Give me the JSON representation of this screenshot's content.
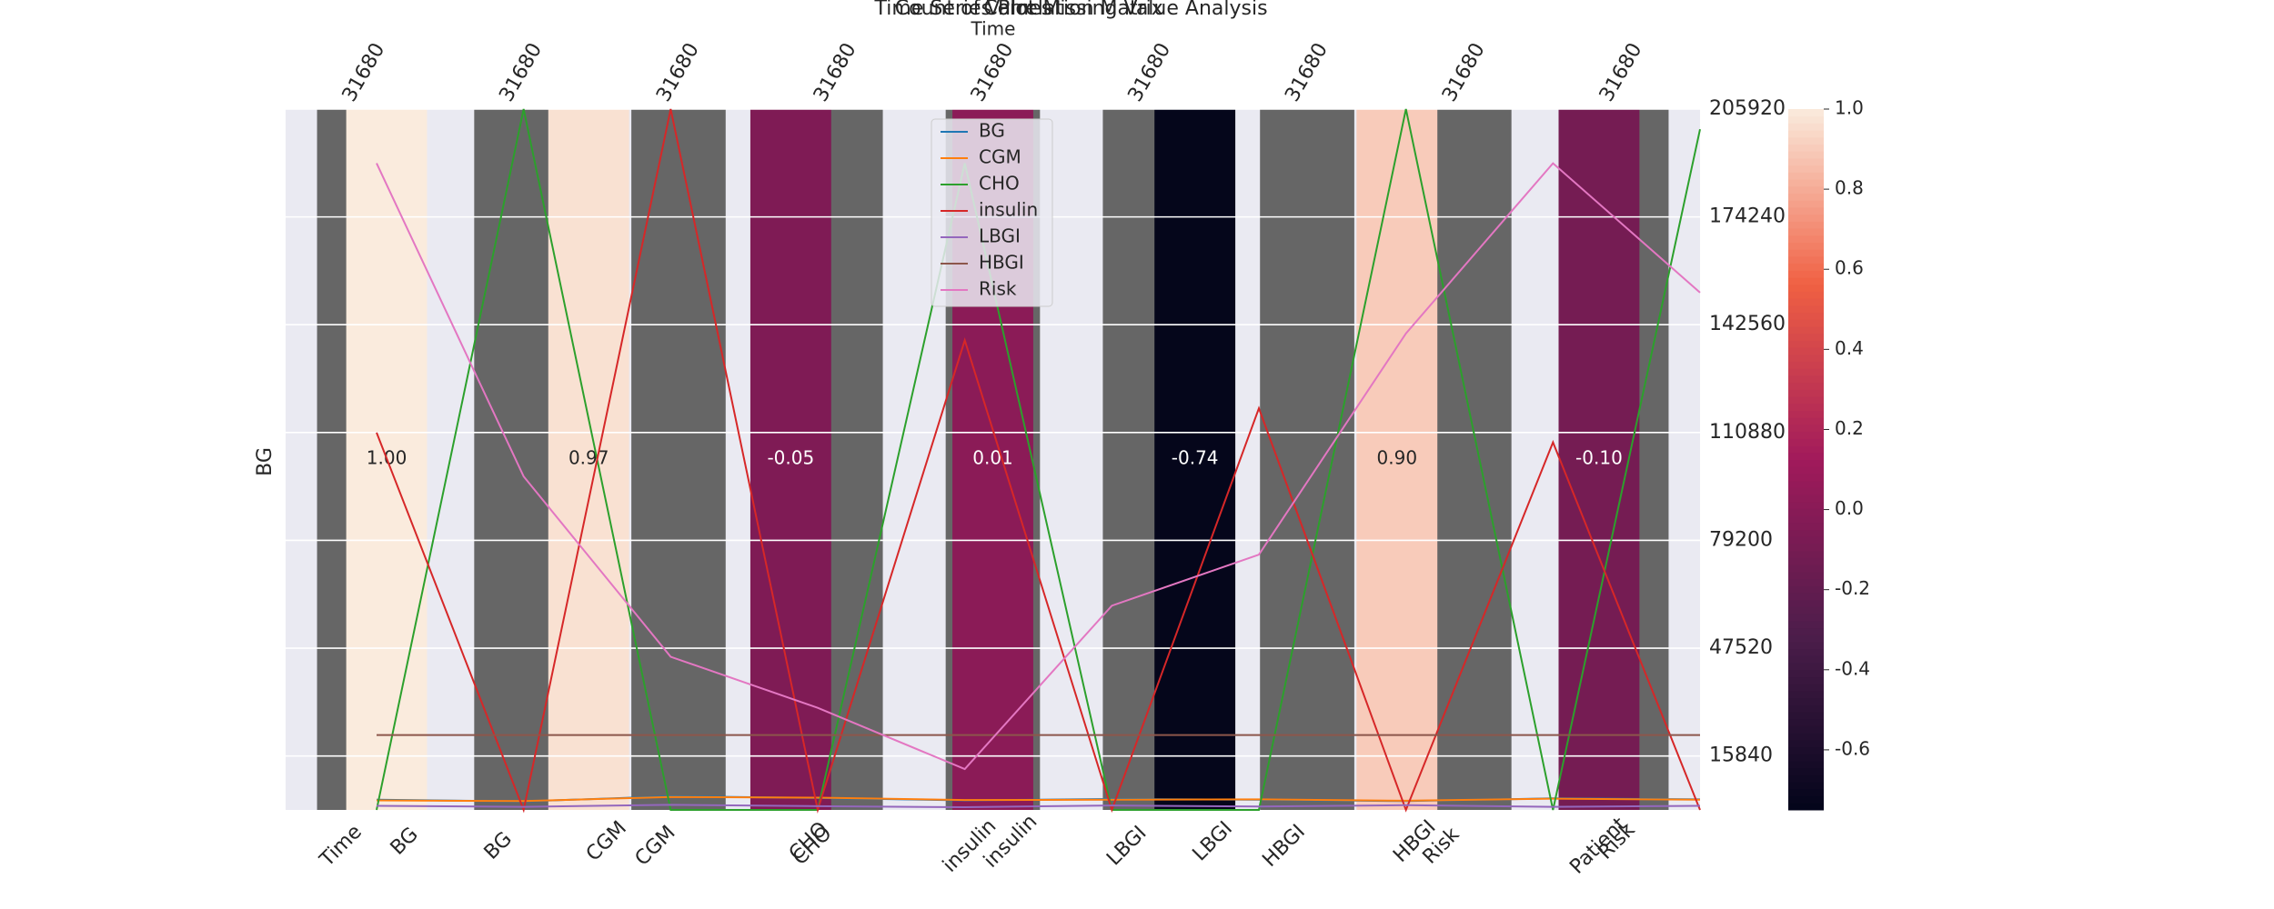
{
  "chart_data": [
    {
      "type": "bar",
      "title": "Count of Values",
      "categories": [
        "Time",
        "BG",
        "CGM",
        "CHO",
        "insulin",
        "LBGI",
        "HBGI",
        "Risk",
        "Patient"
      ],
      "values": [
        31680,
        31680,
        31680,
        31680,
        31680,
        31680,
        31680,
        31680,
        31680
      ],
      "color": "#666666",
      "ylim": [
        0,
        31680
      ]
    },
    {
      "type": "heatmap",
      "title": "Correlation Matrix",
      "x_categories": [
        "BG",
        "CGM",
        "CHO",
        "insulin",
        "LBGI",
        "HBGI",
        "Risk"
      ],
      "y_categories": [
        "BG"
      ],
      "values": [
        1.0,
        0.97,
        -0.05,
        0.01,
        -0.74,
        0.9,
        -0.1
      ],
      "value_labels": [
        "1.00",
        "0.97",
        "-0.05",
        "0.01",
        "-0.74",
        "0.90",
        "-0.10"
      ],
      "clim": [
        -0.75,
        1.0
      ],
      "cticks": [
        -0.6,
        -0.4,
        -0.2,
        {
          "value": 0,
          "label": "0.0"
        },
        0.2,
        0.4,
        0.6,
        0.8,
        {
          "value": 1,
          "label": "1.0"
        }
      ]
    },
    {
      "type": "line",
      "title": "Time Series Plot",
      "x_label": "Time",
      "ylim": [
        0,
        205920
      ],
      "yticks": [
        15840,
        47520,
        79200,
        110880,
        142560,
        174240,
        205920
      ],
      "grid": true,
      "legend": "upper center",
      "series": [
        {
          "name": "BG",
          "color": "#1f77b4",
          "values": [
            3000,
            2500,
            4000,
            3500,
            2800,
            3200,
            3000,
            2600,
            3400,
            3100
          ]
        },
        {
          "name": "CGM",
          "color": "#ff7f0e",
          "values": [
            2800,
            2600,
            3800,
            3600,
            2900,
            3000,
            3100,
            2700,
            3300,
            3000
          ]
        },
        {
          "name": "CHO",
          "color": "#2ca02c",
          "values": [
            0,
            205920,
            0,
            0,
            190000,
            0,
            0,
            205920,
            0,
            200000
          ]
        },
        {
          "name": "insulin",
          "color": "#d62728",
          "values": [
            110880,
            0,
            205920,
            0,
            138000,
            0,
            118000,
            0,
            108000,
            0
          ]
        },
        {
          "name": "LBGI",
          "color": "#9467bd",
          "values": [
            1200,
            900,
            1500,
            1100,
            800,
            1300,
            1000,
            1400,
            900,
            1200
          ]
        },
        {
          "name": "HBGI",
          "color": "#8c564b",
          "values": [
            22000,
            22000,
            22000,
            22000,
            22000,
            22000,
            22000,
            22000,
            22000,
            22000
          ]
        },
        {
          "name": "Risk",
          "color": "#e377c2",
          "values": [
            190000,
            98000,
            45000,
            30000,
            12000,
            60000,
            75000,
            140000,
            190000,
            152000
          ]
        }
      ]
    },
    {
      "type": "missing",
      "title": "Missing Value Analysis"
    }
  ]
}
